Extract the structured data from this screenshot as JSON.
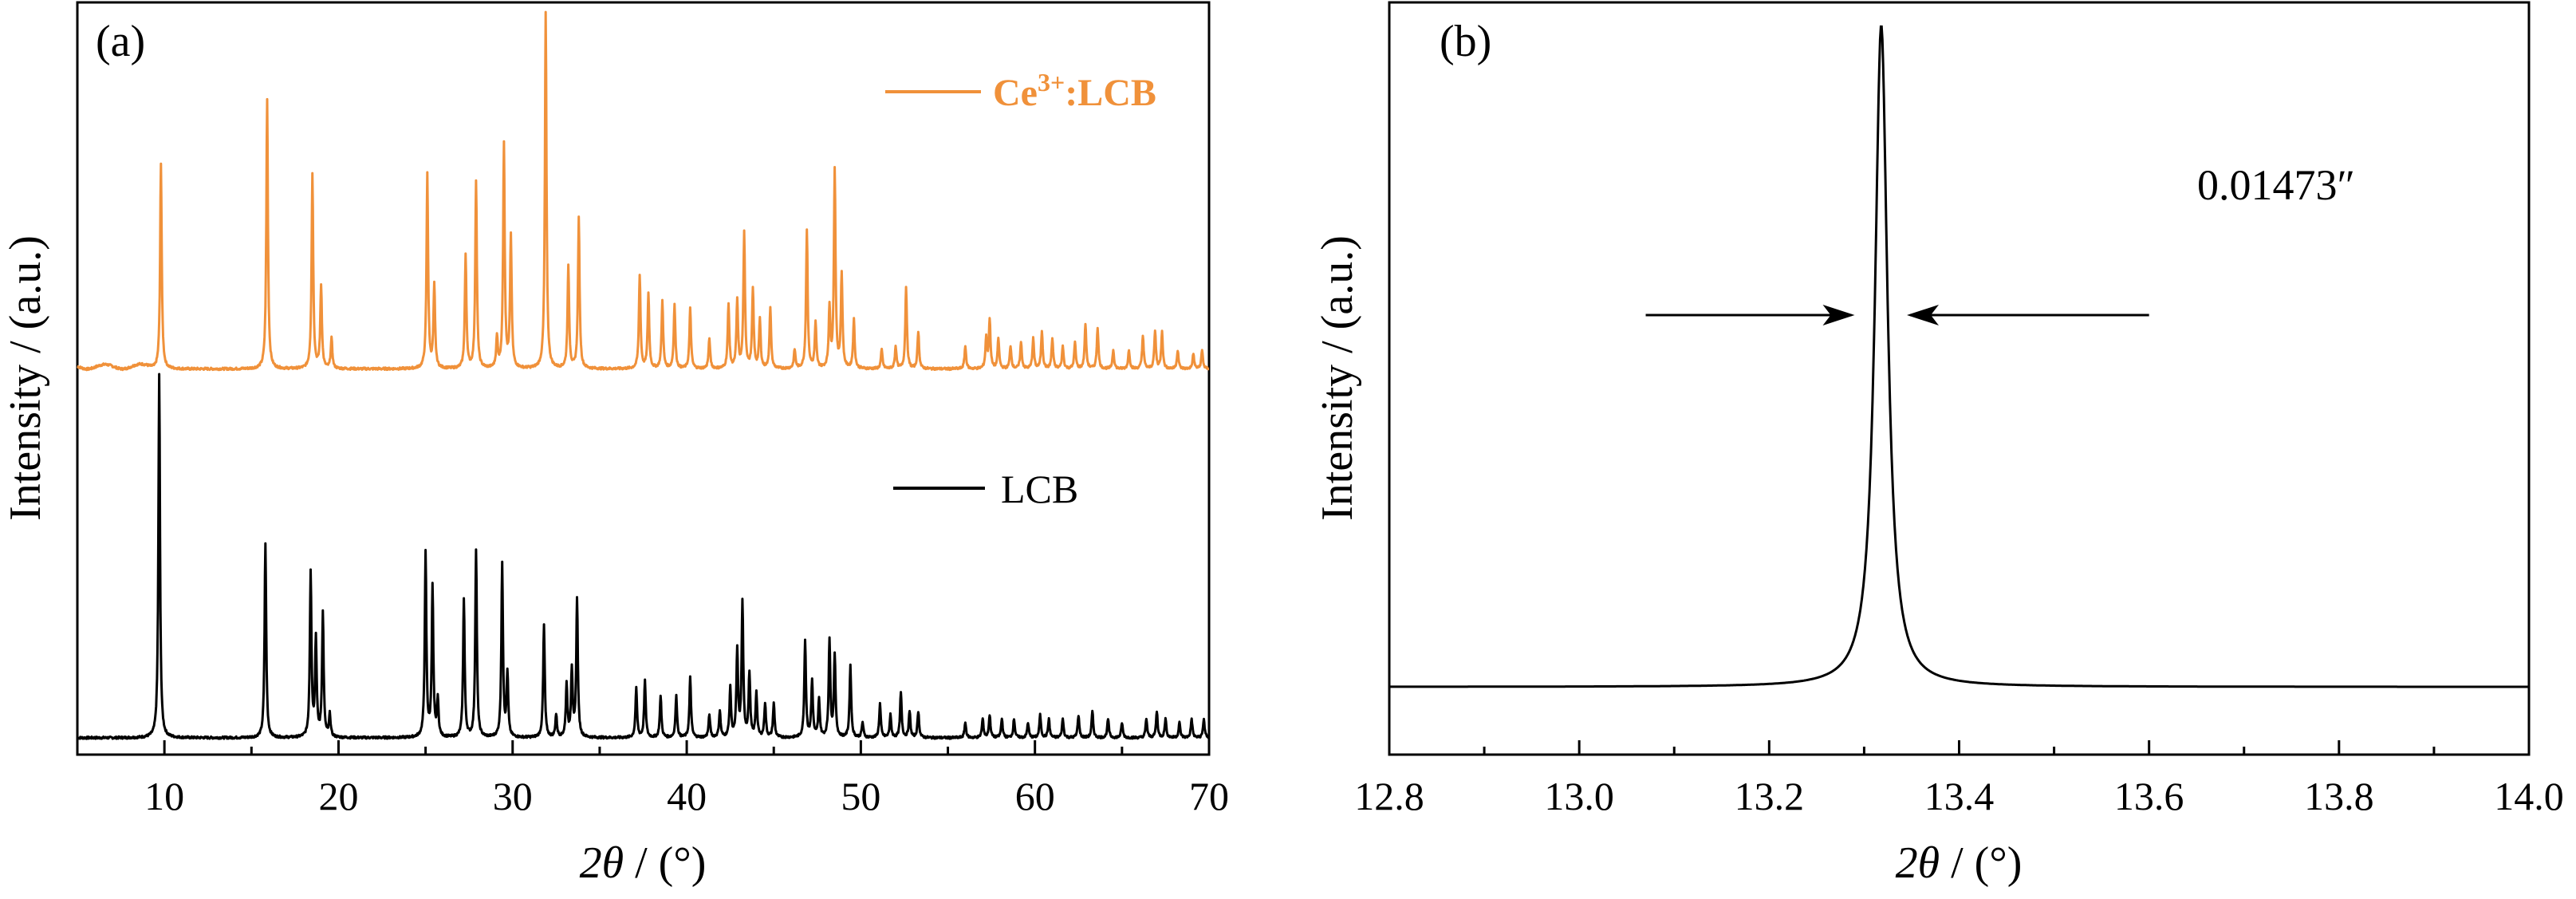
{
  "chart_data": [
    {
      "type": "line",
      "panel_label": "(a)",
      "xlabel_italic": "2θ",
      "xlabel_rest": " / (°)",
      "ylabel": "Intensity / (a.u.)",
      "xlim": [
        5,
        70
      ],
      "xticks": [
        "10",
        "20",
        "30",
        "40",
        "50",
        "60",
        "70"
      ],
      "ytick_labels": false,
      "series": [
        {
          "name": "Ce3+:LCB",
          "label_main": "Ce",
          "label_sup": "3+",
          "label_tail": ":LCB",
          "color": "#F0913A",
          "baseline": 0.02,
          "peaks": [
            [
              9.8,
              0.55
            ],
            [
              15.9,
              0.72
            ],
            [
              18.5,
              0.52
            ],
            [
              19.0,
              0.22
            ],
            [
              19.6,
              0.08
            ],
            [
              25.1,
              0.52
            ],
            [
              25.5,
              0.22
            ],
            [
              27.3,
              0.3
            ],
            [
              27.9,
              0.5
            ],
            [
              29.1,
              0.08
            ],
            [
              29.5,
              0.6
            ],
            [
              29.9,
              0.35
            ],
            [
              31.9,
              0.95
            ],
            [
              33.2,
              0.27
            ],
            [
              33.8,
              0.4
            ],
            [
              37.3,
              0.25
            ],
            [
              37.8,
              0.2
            ],
            [
              38.6,
              0.18
            ],
            [
              39.3,
              0.17
            ],
            [
              40.2,
              0.16
            ],
            [
              41.3,
              0.08
            ],
            [
              42.4,
              0.17
            ],
            [
              42.9,
              0.18
            ],
            [
              43.3,
              0.36
            ],
            [
              43.8,
              0.21
            ],
            [
              44.2,
              0.13
            ],
            [
              44.8,
              0.16
            ],
            [
              46.2,
              0.05
            ],
            [
              46.9,
              0.37
            ],
            [
              47.4,
              0.12
            ],
            [
              48.2,
              0.16
            ],
            [
              48.5,
              0.53
            ],
            [
              48.9,
              0.25
            ],
            [
              49.6,
              0.13
            ],
            [
              51.2,
              0.05
            ],
            [
              52.0,
              0.06
            ],
            [
              52.6,
              0.22
            ],
            [
              53.3,
              0.1
            ],
            [
              56.0,
              0.06
            ],
            [
              57.2,
              0.08
            ],
            [
              57.4,
              0.13
            ],
            [
              57.9,
              0.08
            ],
            [
              58.6,
              0.06
            ],
            [
              59.2,
              0.07
            ],
            [
              59.9,
              0.08
            ],
            [
              60.4,
              0.1
            ],
            [
              61.0,
              0.08
            ],
            [
              61.6,
              0.06
            ],
            [
              62.3,
              0.07
            ],
            [
              62.9,
              0.12
            ],
            [
              63.6,
              0.11
            ],
            [
              64.5,
              0.05
            ],
            [
              65.4,
              0.05
            ],
            [
              66.2,
              0.09
            ],
            [
              66.9,
              0.1
            ],
            [
              67.3,
              0.1
            ],
            [
              68.2,
              0.05
            ],
            [
              69.1,
              0.04
            ],
            [
              69.6,
              0.05
            ]
          ]
        },
        {
          "name": "LCB",
          "label_main": "LCB",
          "color": "#000000",
          "baseline": 0.0,
          "peaks": [
            [
              9.7,
              0.97
            ],
            [
              15.8,
              0.52
            ],
            [
              18.4,
              0.44
            ],
            [
              18.7,
              0.26
            ],
            [
              19.1,
              0.33
            ],
            [
              19.5,
              0.06
            ],
            [
              25.0,
              0.49
            ],
            [
              25.4,
              0.4
            ],
            [
              25.7,
              0.1
            ],
            [
              27.2,
              0.37
            ],
            [
              27.9,
              0.5
            ],
            [
              29.4,
              0.46
            ],
            [
              29.7,
              0.17
            ],
            [
              31.8,
              0.3
            ],
            [
              32.5,
              0.06
            ],
            [
              33.1,
              0.14
            ],
            [
              33.4,
              0.18
            ],
            [
              33.7,
              0.37
            ],
            [
              37.1,
              0.13
            ],
            [
              37.6,
              0.15
            ],
            [
              38.5,
              0.11
            ],
            [
              39.4,
              0.11
            ],
            [
              40.2,
              0.16
            ],
            [
              41.3,
              0.06
            ],
            [
              41.9,
              0.07
            ],
            [
              42.5,
              0.13
            ],
            [
              42.9,
              0.23
            ],
            [
              43.2,
              0.36
            ],
            [
              43.6,
              0.17
            ],
            [
              44.0,
              0.12
            ],
            [
              44.5,
              0.09
            ],
            [
              45.0,
              0.09
            ],
            [
              46.8,
              0.26
            ],
            [
              47.2,
              0.15
            ],
            [
              47.6,
              0.1
            ],
            [
              48.2,
              0.26
            ],
            [
              48.5,
              0.22
            ],
            [
              49.4,
              0.19
            ],
            [
              50.1,
              0.04
            ],
            [
              51.1,
              0.09
            ],
            [
              51.7,
              0.06
            ],
            [
              52.3,
              0.12
            ],
            [
              52.8,
              0.07
            ],
            [
              53.3,
              0.07
            ],
            [
              56.0,
              0.04
            ],
            [
              57.0,
              0.05
            ],
            [
              57.4,
              0.06
            ],
            [
              58.1,
              0.05
            ],
            [
              58.8,
              0.05
            ],
            [
              59.6,
              0.04
            ],
            [
              60.3,
              0.06
            ],
            [
              60.8,
              0.05
            ],
            [
              61.6,
              0.05
            ],
            [
              62.5,
              0.06
            ],
            [
              63.3,
              0.07
            ],
            [
              64.2,
              0.05
            ],
            [
              65.0,
              0.04
            ],
            [
              66.4,
              0.05
            ],
            [
              67.0,
              0.07
            ],
            [
              67.5,
              0.05
            ],
            [
              68.3,
              0.04
            ],
            [
              69.0,
              0.05
            ],
            [
              69.7,
              0.05
            ]
          ]
        }
      ]
    },
    {
      "type": "line",
      "panel_label": "(b)",
      "xlabel_italic": "2θ",
      "xlabel_rest": " / (°)",
      "ylabel": "Intensity / (a.u.)",
      "xlim": [
        12.8,
        14.0
      ],
      "xticks": [
        "12.8",
        "13.0",
        "13.2",
        "13.4",
        "13.6",
        "13.8",
        "14.0"
      ],
      "ytick_labels": false,
      "series": [
        {
          "color": "#000000",
          "baseline": 0.09,
          "peaks": [
            [
              13.318,
              0.88
            ]
          ],
          "hwhm": 0.008
        }
      ],
      "annotation": "0.01473″",
      "arrows": [
        {
          "from_x": 13.07,
          "to_x": 13.29
        },
        {
          "from_x": 13.6,
          "to_x": 13.345
        }
      ]
    }
  ]
}
